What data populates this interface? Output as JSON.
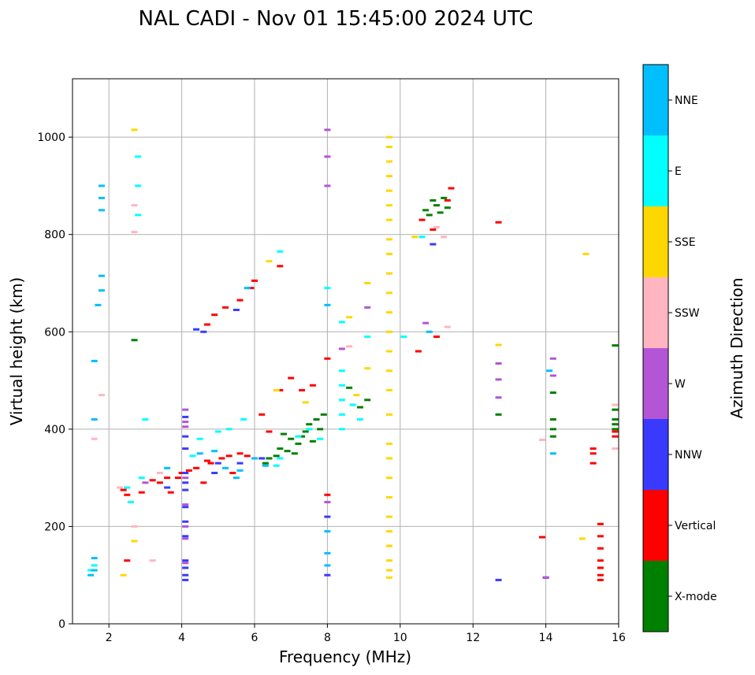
{
  "chart_data": {
    "type": "scatter",
    "title": "NAL CADI - Nov 01 15:45:00 2024 UTC",
    "xlabel": "Frequency (MHz)",
    "ylabel": "Virtual height (km)",
    "xlim": [
      1,
      16
    ],
    "ylim": [
      0,
      1120
    ],
    "xticks": [
      2,
      4,
      6,
      8,
      10,
      12,
      14,
      16
    ],
    "yticks": [
      0,
      200,
      400,
      600,
      800,
      1000
    ],
    "grid": true,
    "colorbar": {
      "label": "Azimuth Direction",
      "categories": [
        {
          "name": "X-mode",
          "color": "#008000"
        },
        {
          "name": "Vertical",
          "color": "#ff0000"
        },
        {
          "name": "NNW",
          "color": "#3a3aff"
        },
        {
          "name": "W",
          "color": "#b455d6"
        },
        {
          "name": "SSW",
          "color": "#ffb6c1"
        },
        {
          "name": "SSE",
          "color": "#ffd700"
        },
        {
          "name": "E",
          "color": "#00ffff"
        },
        {
          "name": "NNE",
          "color": "#00bfff"
        }
      ]
    },
    "series": [
      {
        "name": "X-mode",
        "points": [
          [
            6.4,
            340
          ],
          [
            6.7,
            360
          ],
          [
            6.9,
            355
          ],
          [
            7.0,
            380
          ],
          [
            7.2,
            370
          ],
          [
            7.4,
            395
          ],
          [
            7.5,
            410
          ],
          [
            7.7,
            420
          ],
          [
            7.8,
            400
          ],
          [
            6.8,
            390
          ],
          [
            7.1,
            350
          ],
          [
            7.3,
            385
          ],
          [
            6.6,
            345
          ],
          [
            7.6,
            375
          ],
          [
            8.6,
            485
          ],
          [
            8.9,
            445
          ],
          [
            9.1,
            460
          ],
          [
            10.7,
            850
          ],
          [
            10.9,
            870
          ],
          [
            11.0,
            860
          ],
          [
            11.2,
            875
          ],
          [
            11.3,
            855
          ],
          [
            10.8,
            840
          ],
          [
            11.1,
            845
          ],
          [
            14.2,
            475
          ],
          [
            14.2,
            420
          ],
          [
            14.2,
            400
          ],
          [
            14.2,
            385
          ],
          [
            15.9,
            440
          ],
          [
            15.9,
            420
          ],
          [
            15.9,
            410
          ],
          [
            15.9,
            400
          ],
          [
            15.9,
            572
          ],
          [
            12.7,
            430
          ],
          [
            14.0,
            95
          ],
          [
            2.7,
            583
          ],
          [
            6.3,
            330
          ],
          [
            7.9,
            430
          ]
        ]
      },
      {
        "name": "Vertical",
        "points": [
          [
            2.4,
            275
          ],
          [
            2.5,
            265
          ],
          [
            3.2,
            295
          ],
          [
            3.4,
            290
          ],
          [
            3.6,
            300
          ],
          [
            3.9,
            300
          ],
          [
            4.0,
            310
          ],
          [
            4.2,
            315
          ],
          [
            4.4,
            320
          ],
          [
            4.7,
            335
          ],
          [
            4.8,
            330
          ],
          [
            5.1,
            340
          ],
          [
            5.3,
            345
          ],
          [
            5.6,
            350
          ],
          [
            5.8,
            345
          ],
          [
            6.4,
            395
          ],
          [
            6.7,
            480
          ],
          [
            7.0,
            505
          ],
          [
            7.3,
            480
          ],
          [
            7.6,
            490
          ],
          [
            8.0,
            545
          ],
          [
            4.7,
            615
          ],
          [
            4.9,
            635
          ],
          [
            5.2,
            650
          ],
          [
            5.6,
            665
          ],
          [
            5.9,
            690
          ],
          [
            6.0,
            705
          ],
          [
            6.7,
            735
          ],
          [
            11.4,
            895
          ],
          [
            11.3,
            870
          ],
          [
            10.6,
            830
          ],
          [
            10.9,
            810
          ],
          [
            12.7,
            825
          ],
          [
            15.3,
            330
          ],
          [
            15.5,
            205
          ],
          [
            15.5,
            180
          ],
          [
            15.5,
            155
          ],
          [
            15.5,
            130
          ],
          [
            15.5,
            115
          ],
          [
            15.5,
            100
          ],
          [
            15.5,
            90
          ],
          [
            15.3,
            360
          ],
          [
            15.3,
            350
          ],
          [
            15.9,
            385
          ],
          [
            15.9,
            395
          ],
          [
            13.9,
            178
          ],
          [
            10.5,
            560
          ],
          [
            11.0,
            590
          ],
          [
            2.5,
            130
          ],
          [
            3.7,
            270
          ],
          [
            4.6,
            290
          ],
          [
            5.4,
            310
          ],
          [
            2.9,
            270
          ],
          [
            6.2,
            430
          ],
          [
            8.0,
            265
          ]
        ]
      },
      {
        "name": "NNW",
        "points": [
          [
            4.1,
            425
          ],
          [
            4.1,
            385
          ],
          [
            4.1,
            360
          ],
          [
            4.1,
            310
          ],
          [
            4.1,
            290
          ],
          [
            4.1,
            275
          ],
          [
            4.1,
            240
          ],
          [
            4.1,
            210
          ],
          [
            4.1,
            180
          ],
          [
            4.1,
            130
          ],
          [
            4.1,
            115
          ],
          [
            4.1,
            100
          ],
          [
            4.1,
            90
          ],
          [
            4.4,
            605
          ],
          [
            5.5,
            645
          ],
          [
            4.9,
            310
          ],
          [
            5.6,
            330
          ],
          [
            6.2,
            340
          ],
          [
            10.9,
            780
          ],
          [
            12.7,
            90
          ],
          [
            14.0,
            95
          ],
          [
            8.0,
            220
          ],
          [
            8.0,
            100
          ],
          [
            4.6,
            600
          ],
          [
            3.6,
            280
          ],
          [
            5.0,
            330
          ]
        ]
      },
      {
        "name": "W",
        "points": [
          [
            4.1,
            440
          ],
          [
            4.1,
            415
          ],
          [
            4.1,
            405
          ],
          [
            4.1,
            300
          ],
          [
            4.1,
            245
          ],
          [
            4.1,
            200
          ],
          [
            4.1,
            175
          ],
          [
            4.1,
            125
          ],
          [
            12.7,
            502
          ],
          [
            12.7,
            465
          ],
          [
            12.7,
            535
          ],
          [
            14.2,
            510
          ],
          [
            14.2,
            545
          ],
          [
            8.0,
            1015
          ],
          [
            8.0,
            960
          ],
          [
            8.0,
            900
          ],
          [
            8.0,
            250
          ],
          [
            10.7,
            618
          ],
          [
            3.0,
            290
          ],
          [
            8.4,
            565
          ],
          [
            9.1,
            650
          ],
          [
            14.0,
            95
          ]
        ]
      },
      {
        "name": "SSW",
        "points": [
          [
            3.2,
            130
          ],
          [
            3.4,
            310
          ],
          [
            2.3,
            280
          ],
          [
            15.9,
            360
          ],
          [
            15.9,
            450
          ],
          [
            13.9,
            378
          ],
          [
            11.0,
            815
          ],
          [
            11.2,
            795
          ],
          [
            11.3,
            610
          ],
          [
            2.7,
            200
          ],
          [
            2.7,
            860
          ],
          [
            2.7,
            805
          ],
          [
            8.6,
            570
          ],
          [
            1.6,
            380
          ],
          [
            1.8,
            470
          ]
        ]
      },
      {
        "name": "SSE",
        "points": [
          [
            2.7,
            1015
          ],
          [
            9.7,
            1000
          ],
          [
            9.7,
            980
          ],
          [
            9.7,
            950
          ],
          [
            9.7,
            920
          ],
          [
            9.7,
            890
          ],
          [
            9.7,
            860
          ],
          [
            9.7,
            830
          ],
          [
            9.7,
            790
          ],
          [
            9.7,
            760
          ],
          [
            9.7,
            720
          ],
          [
            9.7,
            680
          ],
          [
            9.7,
            640
          ],
          [
            9.7,
            600
          ],
          [
            9.7,
            560
          ],
          [
            9.7,
            520
          ],
          [
            9.7,
            480
          ],
          [
            9.7,
            430
          ],
          [
            9.7,
            370
          ],
          [
            9.7,
            340
          ],
          [
            9.7,
            300
          ],
          [
            9.7,
            260
          ],
          [
            9.7,
            220
          ],
          [
            9.7,
            190
          ],
          [
            9.7,
            160
          ],
          [
            9.7,
            130
          ],
          [
            9.7,
            110
          ],
          [
            9.7,
            95
          ],
          [
            12.7,
            573
          ],
          [
            15.1,
            760
          ],
          [
            15.0,
            175
          ],
          [
            2.4,
            100
          ],
          [
            2.7,
            170
          ],
          [
            6.6,
            480
          ],
          [
            7.4,
            455
          ],
          [
            8.8,
            470
          ],
          [
            9.1,
            700
          ],
          [
            9.1,
            525
          ],
          [
            6.4,
            745
          ],
          [
            10.4,
            795
          ],
          [
            8.6,
            630
          ]
        ]
      },
      {
        "name": "E",
        "points": [
          [
            5.3,
            400
          ],
          [
            5.7,
            420
          ],
          [
            5.0,
            395
          ],
          [
            4.5,
            380
          ],
          [
            4.3,
            345
          ],
          [
            6.6,
            325
          ],
          [
            6.7,
            340
          ],
          [
            7.2,
            385
          ],
          [
            7.5,
            400
          ],
          [
            7.8,
            380
          ],
          [
            8.4,
            520
          ],
          [
            8.4,
            490
          ],
          [
            8.4,
            460
          ],
          [
            8.4,
            430
          ],
          [
            8.4,
            400
          ],
          [
            8.7,
            450
          ],
          [
            8.9,
            420
          ],
          [
            9.1,
            590
          ],
          [
            8.4,
            620
          ],
          [
            2.5,
            280
          ],
          [
            2.6,
            250
          ],
          [
            2.8,
            960
          ],
          [
            2.8,
            900
          ],
          [
            2.8,
            840
          ],
          [
            1.5,
            110
          ],
          [
            1.6,
            120
          ],
          [
            6.7,
            765
          ],
          [
            8.0,
            690
          ],
          [
            10.6,
            795
          ],
          [
            10.1,
            590
          ],
          [
            2.9,
            300
          ],
          [
            3.0,
            420
          ]
        ]
      },
      {
        "name": "NNE",
        "points": [
          [
            1.5,
            100
          ],
          [
            1.6,
            110
          ],
          [
            1.6,
            135
          ],
          [
            1.6,
            540
          ],
          [
            1.6,
            420
          ],
          [
            1.8,
            900
          ],
          [
            1.8,
            875
          ],
          [
            1.8,
            850
          ],
          [
            1.8,
            715
          ],
          [
            1.8,
            685
          ],
          [
            1.7,
            655
          ],
          [
            4.5,
            350
          ],
          [
            4.9,
            355
          ],
          [
            5.2,
            320
          ],
          [
            5.6,
            315
          ],
          [
            6.0,
            340
          ],
          [
            6.3,
            325
          ],
          [
            5.5,
            300
          ],
          [
            8.0,
            655
          ],
          [
            8.0,
            190
          ],
          [
            8.0,
            145
          ],
          [
            8.0,
            120
          ],
          [
            10.8,
            600
          ],
          [
            14.2,
            350
          ],
          [
            14.1,
            520
          ],
          [
            5.8,
            690
          ],
          [
            3.6,
            320
          ]
        ]
      }
    ]
  }
}
